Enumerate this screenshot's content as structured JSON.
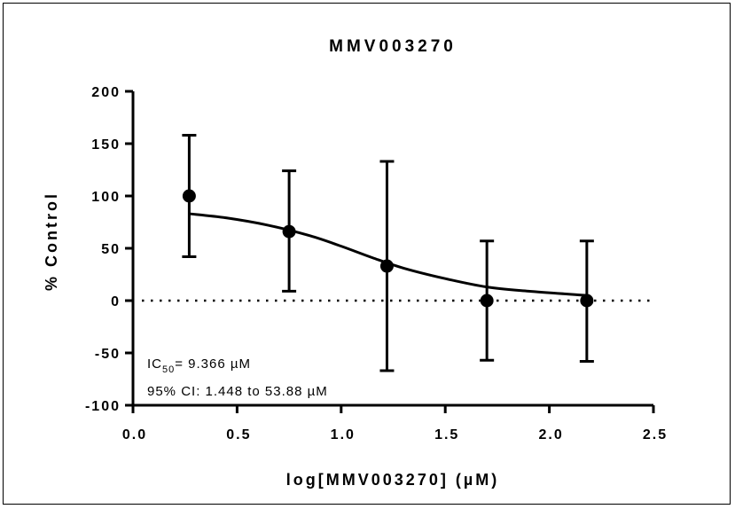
{
  "chart_data": {
    "type": "scatter",
    "title": "MMV003270",
    "xlabel": "log[MMV003270] (µM)",
    "ylabel": "% Control",
    "xlim": [
      0,
      2.5
    ],
    "ylim": [
      -100,
      200
    ],
    "x_ticks": [
      "0.0",
      "0.5",
      "1.0",
      "1.5",
      "2.0",
      "2.5"
    ],
    "y_ticks": [
      "-100",
      "-50",
      "0",
      "50",
      "100",
      "150",
      "200"
    ],
    "reference_line": {
      "y": 0,
      "style": "dotted"
    },
    "points": [
      {
        "x": 0.27,
        "y": 100,
        "err_low": 42,
        "err_high": 158
      },
      {
        "x": 0.75,
        "y": 66,
        "err_low": 9,
        "err_high": 124
      },
      {
        "x": 1.22,
        "y": 33,
        "err_low": -67,
        "err_high": 133
      },
      {
        "x": 1.7,
        "y": 0,
        "err_low": -57,
        "err_high": 57
      },
      {
        "x": 2.18,
        "y": 0,
        "err_low": -58,
        "err_high": 57
      }
    ],
    "fit_curve": [
      {
        "x": 0.27,
        "y": 83
      },
      {
        "x": 0.45,
        "y": 79
      },
      {
        "x": 0.65,
        "y": 72
      },
      {
        "x": 0.85,
        "y": 62
      },
      {
        "x": 1.0,
        "y": 52
      },
      {
        "x": 1.15,
        "y": 41
      },
      {
        "x": 1.3,
        "y": 31
      },
      {
        "x": 1.5,
        "y": 21
      },
      {
        "x": 1.7,
        "y": 13
      },
      {
        "x": 1.9,
        "y": 9
      },
      {
        "x": 2.18,
        "y": 5
      }
    ],
    "annotations": {
      "ic50_prefix": "IC",
      "ic50_sub": "50",
      "ic50_value": "= 9.366 µM",
      "ci_text": "95% CI: 1.448 to  53.88 µM"
    }
  }
}
